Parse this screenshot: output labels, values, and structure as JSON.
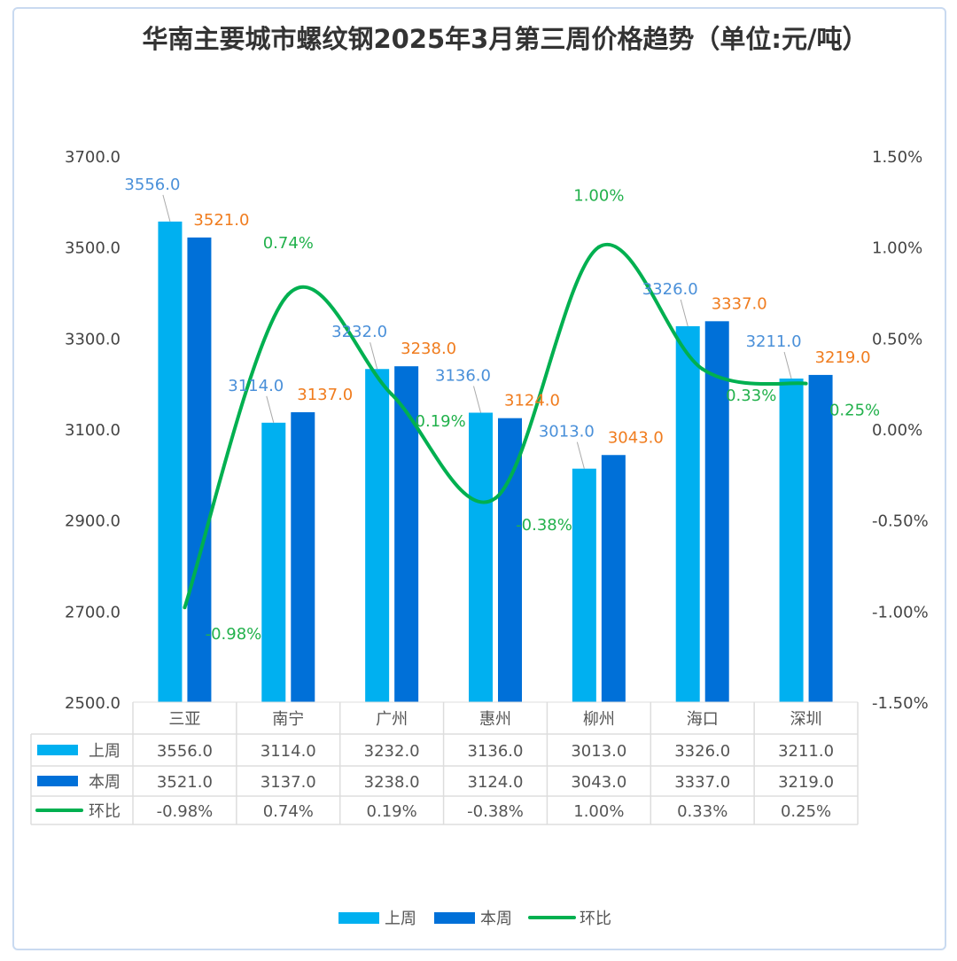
{
  "chart_data": {
    "type": "bar+line",
    "title": "华南主要城市螺纹钢2025年3月第三周价格趋势（单位:元/吨）",
    "categories": [
      "三亚",
      "南宁",
      "广州",
      "惠州",
      "柳州",
      "海口",
      "深圳"
    ],
    "series": [
      {
        "name": "上周",
        "type": "bar",
        "axis": "left",
        "color": "#00b0f0",
        "values": [
          3556.0,
          3114.0,
          3232.0,
          3136.0,
          3013.0,
          3326.0,
          3211.0
        ],
        "labels": [
          "3556.0",
          "3114.0",
          "3232.0",
          "3136.0",
          "3013.0",
          "3326.0",
          "3211.0"
        ]
      },
      {
        "name": "本周",
        "type": "bar",
        "axis": "left",
        "color": "#0070d8",
        "values": [
          3521.0,
          3137.0,
          3238.0,
          3124.0,
          3043.0,
          3337.0,
          3219.0
        ],
        "labels": [
          "3521.0",
          "3137.0",
          "3238.0",
          "3124.0",
          "3043.0",
          "3337.0",
          "3219.0"
        ]
      },
      {
        "name": "环比",
        "type": "line",
        "axis": "right",
        "color": "#00b050",
        "values": [
          -0.98,
          0.74,
          0.19,
          -0.38,
          1.0,
          0.33,
          0.25
        ],
        "labels": [
          "-0.98%",
          "0.74%",
          "0.19%",
          "-0.38%",
          "1.00%",
          "0.33%",
          "0.25%"
        ]
      }
    ],
    "y_left": {
      "range": [
        2500,
        3700
      ],
      "ticks": [
        "2500.0",
        "2700.0",
        "2900.0",
        "3100.0",
        "3300.0",
        "3500.0",
        "3700.0"
      ]
    },
    "y_right": {
      "range": [
        -1.5,
        1.5
      ],
      "ticks": [
        "-1.50%",
        "-1.00%",
        "-0.50%",
        "0.00%",
        "0.50%",
        "1.00%",
        "1.50%"
      ]
    },
    "label_colors": {
      "上周": "#4a90d9",
      "本周": "#f07c1e",
      "环比": "#22b14c"
    },
    "data_table": true,
    "legend": "bottom",
    "grid": false
  }
}
